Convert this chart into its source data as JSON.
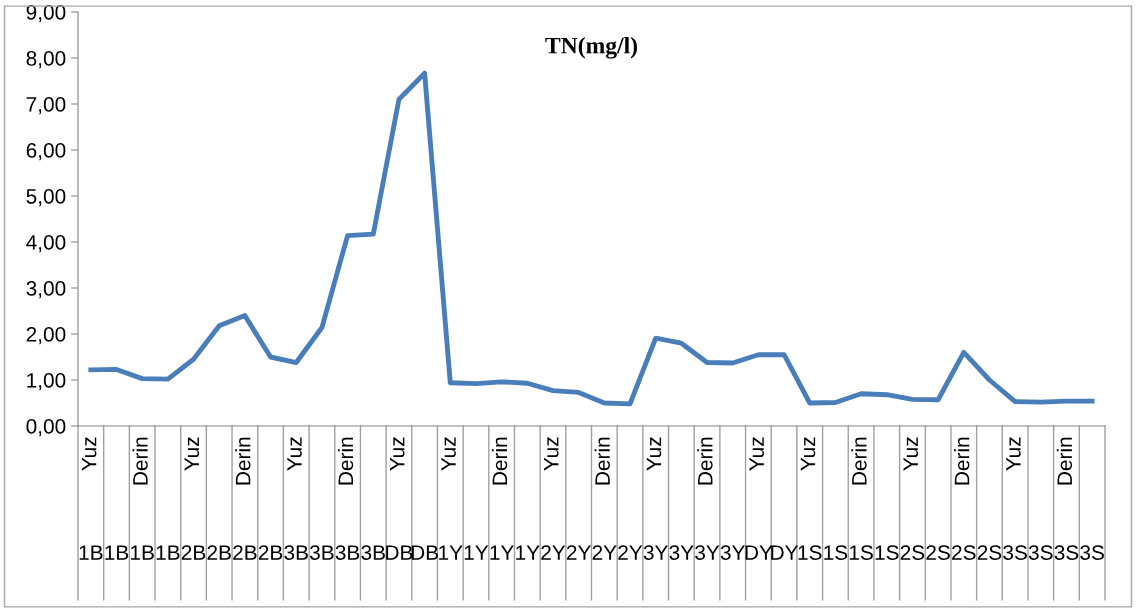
{
  "chart_data": {
    "type": "line",
    "title": "TN(mg/l)",
    "categories": [
      "Yuz\n1B",
      "1B",
      "Derin\n1B",
      "1B",
      "Yuz\n2B",
      "2B",
      "Derin\n2B",
      "2B",
      "Yuz\n3B",
      "3B",
      "Derin\n3B",
      "3B",
      "Yuz\nDB",
      "DB",
      "Yuz\n1Y",
      "1Y",
      "Derin\n1Y",
      "1Y",
      "Yuz\n2Y",
      "2Y",
      "Derin\n2Y",
      "2Y",
      "Yuz\n3Y",
      "3Y",
      "Derin\n3Y",
      "3Y",
      "Yuz\nDY",
      "DY",
      "Yuz\n1S",
      "1S",
      "Derin\n1S",
      "1S",
      "Yuz\n2S",
      "2S",
      "Derin\n2S",
      "2S",
      "Yuz\n3S",
      "3S",
      "Derin\n3S",
      "3S"
    ],
    "series": [
      {
        "color": "#4a7ebb",
        "values": [
          1.22,
          1.23,
          1.03,
          1.02,
          1.45,
          2.18,
          2.4,
          1.5,
          1.38,
          2.14,
          4.14,
          4.17,
          7.1,
          7.67,
          0.94,
          0.92,
          0.96,
          0.93,
          0.77,
          0.73,
          0.5,
          0.48,
          1.91,
          1.8,
          1.38,
          1.37,
          1.55,
          1.55,
          0.5,
          0.51,
          0.7,
          0.68,
          0.58,
          0.57,
          1.6,
          1.0,
          0.53,
          0.52,
          0.54,
          0.54
        ]
      }
    ],
    "ylim": [
      0,
      9
    ],
    "yticks": [
      {
        "value": 0,
        "label": "0,00"
      },
      {
        "value": 1,
        "label": "1,00"
      },
      {
        "value": 2,
        "label": "2,00"
      },
      {
        "value": 3,
        "label": "3,00"
      },
      {
        "value": 4,
        "label": "4,00"
      },
      {
        "value": 5,
        "label": "5,00"
      },
      {
        "value": 6,
        "label": "6,00"
      },
      {
        "value": 7,
        "label": "7,00"
      },
      {
        "value": 8,
        "label": "8,00"
      },
      {
        "value": 9,
        "label": "9,00"
      }
    ],
    "grid": false,
    "legend": false,
    "marker": "none",
    "line_style": "solid"
  }
}
